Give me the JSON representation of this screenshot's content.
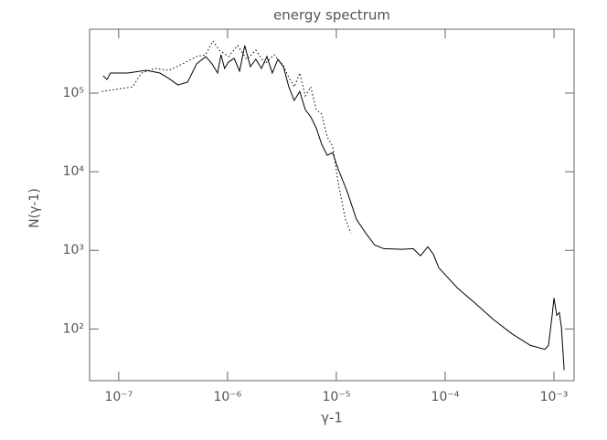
{
  "chart_data": {
    "type": "line",
    "title": "energy spectrum",
    "x_label": "γ-1",
    "y_label": "N(γ-1)",
    "xscale": "log",
    "yscale": "log",
    "xlim": [
      5.4e-08,
      0.00153
    ],
    "ylim": [
      22,
      650000.0
    ],
    "xticks": [
      {
        "value": 1e-07,
        "label": "10⁻⁷"
      },
      {
        "value": 1e-06,
        "label": "10⁻⁶"
      },
      {
        "value": 1e-05,
        "label": "10⁻⁵"
      },
      {
        "value": 0.0001,
        "label": "10⁻⁴"
      },
      {
        "value": 0.001,
        "label": "10⁻³"
      }
    ],
    "yticks": [
      {
        "value": 100,
        "label": "10²"
      },
      {
        "value": 1000,
        "label": "10³"
      },
      {
        "value": 10000,
        "label": "10⁴"
      },
      {
        "value": 100000,
        "label": "10⁵"
      }
    ],
    "series": [
      {
        "color": "#000000",
        "linestyle": "solid",
        "x": [
          7.2e-08,
          7.8e-08,
          8.4e-08,
          1.21e-07,
          1.79e-07,
          2.39e-07,
          2.9e-07,
          3.5e-07,
          4.3e-07,
          5.2e-07,
          6.3e-07,
          7.2e-07,
          8.1e-07,
          8.7e-07,
          9.4e-07,
          1.02e-06,
          1.15e-06,
          1.29e-06,
          1.44e-06,
          1.62e-06,
          1.82e-06,
          2.05e-06,
          2.3e-06,
          2.58e-06,
          2.9e-06,
          3.26e-06,
          3.66e-06,
          4.1e-06,
          4.61e-06,
          5.18e-06,
          5.82e-06,
          6.53e-06,
          7.34e-06,
          8.24e-06,
          9.25e-06,
          1.04e-05,
          1.26e-05,
          1.53e-05,
          1.86e-05,
          2.25e-05,
          2.73e-05,
          4.03e-05,
          5.08e-05,
          5.93e-05,
          6.92e-05,
          7.77e-05,
          8.73e-05,
          0.000129,
          0.000189,
          0.000279,
          0.00041,
          0.000605,
          0.000824,
          0.00089,
          0.000962,
          0.001,
          0.00106,
          0.00112,
          0.00117,
          0.00124
        ],
        "values": [
          166000,
          149000,
          180000,
          180000,
          195000,
          180000,
          153000,
          127000,
          138000,
          236000,
          292000,
          236000,
          180000,
          308000,
          206000,
          248000,
          277000,
          190000,
          403000,
          217000,
          269000,
          206000,
          292000,
          180000,
          269000,
          217000,
          120000,
          80700,
          105000,
          61800,
          49900,
          36100,
          22300,
          16200,
          17500,
          10800,
          5550,
          2480,
          1660,
          1170,
          1050,
          1030,
          1050,
          851,
          1110,
          898,
          601,
          334,
          212,
          131,
          87,
          62,
          55,
          62,
          149,
          248,
          149,
          162,
          105,
          30
        ]
      },
      {
        "color": "#000000",
        "linestyle": "dotted",
        "x": [
          7e-08,
          1.34e-07,
          1.62e-07,
          2.17e-07,
          2.9e-07,
          3.87e-07,
          5.2e-07,
          6.3e-07,
          7.34e-07,
          8.4e-07,
          1.02e-06,
          1.24e-06,
          1.5e-06,
          1.82e-06,
          2.21e-06,
          2.68e-06,
          3.26e-06,
          3.66e-06,
          4.1e-06,
          4.61e-06,
          5.18e-06,
          5.82e-06,
          6.53e-06,
          7.34e-06,
          8.24e-06,
          9.25e-06,
          1.04e-05,
          1.21e-05,
          1.36e-05
        ],
        "values": [
          105000,
          120000,
          180000,
          206000,
          195000,
          236000,
          292000,
          308000,
          460000,
          352000,
          292000,
          403000,
          269000,
          352000,
          236000,
          308000,
          223000,
          158000,
          120000,
          180000,
          92000,
          120000,
          61800,
          54000,
          27700,
          21200,
          7250,
          2480,
          1660
        ]
      }
    ]
  }
}
